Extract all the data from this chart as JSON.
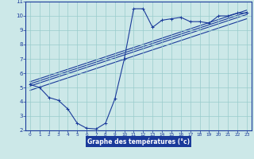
{
  "xlabel": "Graphe des températures (°c)",
  "bg_color": "#cce8e8",
  "plot_bg_color": "#cce8e8",
  "grid_color": "#99cccc",
  "line_color": "#1a3a9a",
  "xlabel_bg": "#1a3a9a",
  "xlabel_fg": "#ffffff",
  "xlim": [
    -0.5,
    23.5
  ],
  "ylim": [
    2,
    11
  ],
  "yticks": [
    2,
    3,
    4,
    5,
    6,
    7,
    8,
    9,
    10,
    11
  ],
  "xticks": [
    0,
    1,
    2,
    3,
    4,
    5,
    6,
    7,
    8,
    9,
    10,
    11,
    12,
    13,
    14,
    15,
    16,
    17,
    18,
    19,
    20,
    21,
    22,
    23
  ],
  "curve1_x": [
    0,
    1,
    2,
    3,
    4,
    5,
    6,
    7,
    8,
    9,
    10,
    11,
    12,
    13,
    14,
    15,
    16,
    17,
    18,
    19,
    20,
    21,
    22,
    23
  ],
  "curve1_y": [
    5.2,
    5.0,
    4.3,
    4.1,
    3.5,
    2.5,
    2.15,
    2.1,
    2.5,
    4.2,
    7.0,
    10.5,
    10.5,
    9.2,
    9.7,
    9.8,
    9.9,
    9.6,
    9.6,
    9.5,
    10.0,
    10.0,
    10.2,
    10.2
  ],
  "line2_x": [
    0,
    23
  ],
  "line2_y": [
    5.1,
    10.1
  ],
  "line3_x": [
    0,
    23
  ],
  "line3_y": [
    4.8,
    9.8
  ],
  "line4_x": [
    0,
    23
  ],
  "line4_y": [
    5.4,
    10.4
  ],
  "line5_x": [
    0,
    23
  ],
  "line5_y": [
    5.25,
    10.25
  ]
}
